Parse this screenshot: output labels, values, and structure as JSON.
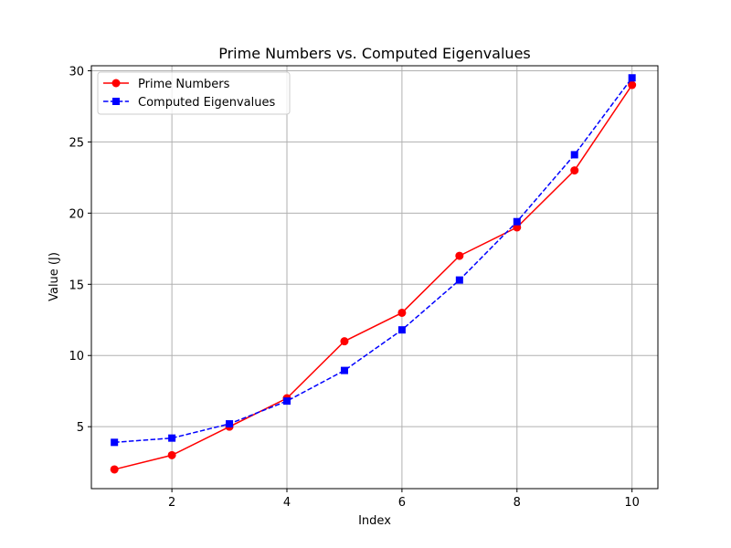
{
  "chart_data": {
    "type": "line",
    "title": "Prime Numbers vs. Computed Eigenvalues",
    "xlabel": "Index",
    "ylabel": "Value (J)",
    "xlim": [
      0.6,
      10.45
    ],
    "ylim": [
      0.65,
      30.35
    ],
    "xticks": [
      2,
      4,
      6,
      8,
      10
    ],
    "yticks": [
      5,
      10,
      15,
      20,
      25,
      30
    ],
    "grid": true,
    "legend_position": "top-left",
    "x": [
      1,
      2,
      3,
      4,
      5,
      6,
      7,
      8,
      9,
      10
    ],
    "series": [
      {
        "name": "Prime Numbers",
        "values": [
          2,
          3,
          5,
          7,
          11,
          13,
          17,
          19,
          23,
          29
        ],
        "color": "#ff0000",
        "linestyle": "solid",
        "marker": "circle"
      },
      {
        "name": "Computed Eigenvalues",
        "values": [
          3.9,
          4.2,
          5.2,
          6.8,
          8.95,
          11.8,
          15.3,
          19.4,
          24.1,
          29.5
        ],
        "color": "#0000ff",
        "linestyle": "dashed",
        "marker": "square"
      }
    ]
  }
}
